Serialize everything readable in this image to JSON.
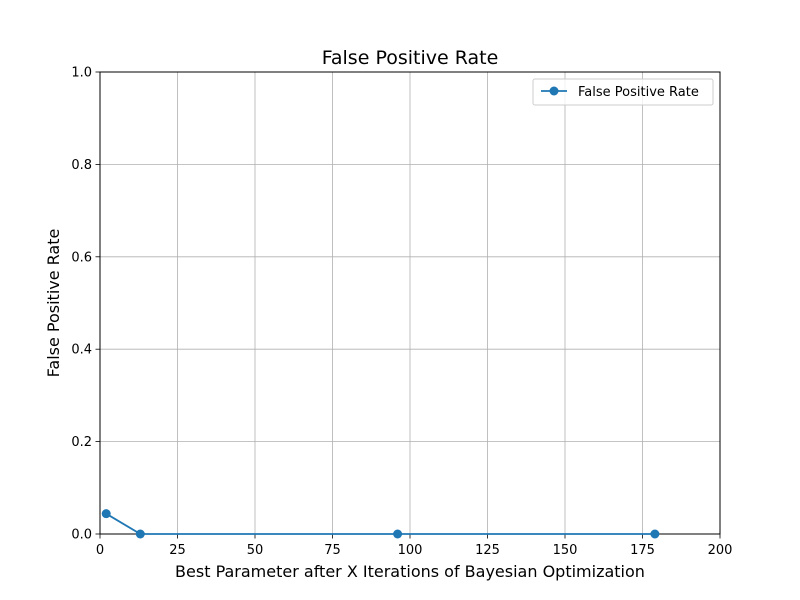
{
  "chart_data": {
    "type": "line",
    "title": "False Positive Rate",
    "xlabel": "Best Parameter after X Iterations of Bayesian Optimization",
    "ylabel": "False Positive Rate",
    "xlim": [
      0,
      200
    ],
    "ylim": [
      0,
      1.0
    ],
    "xticks": [
      "0",
      "25",
      "50",
      "75",
      "100",
      "125",
      "150",
      "175",
      "200"
    ],
    "yticks": [
      "0.0",
      "0.2",
      "0.4",
      "0.6",
      "0.8",
      "1.0"
    ],
    "grid": true,
    "legend_position": "top-right",
    "series": [
      {
        "name": "False Positive Rate",
        "color": "#1f77b4",
        "marker": "circle",
        "x": [
          2,
          13,
          96,
          179
        ],
        "y": [
          0.044,
          0.0,
          0.0,
          0.0
        ]
      }
    ]
  }
}
